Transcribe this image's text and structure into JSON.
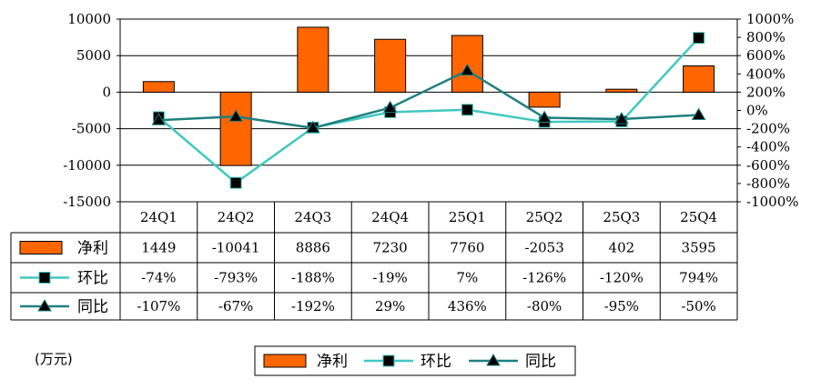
{
  "chart_data": {
    "type": "bar",
    "categories": [
      "24Q1",
      "24Q2",
      "24Q3",
      "24Q4",
      "25Q1",
      "25Q2",
      "25Q3",
      "25Q4"
    ],
    "unit_label": "(万元)",
    "left_axis": {
      "range": [
        -15000,
        10000
      ],
      "ticks": [
        "10000",
        "5000",
        "0",
        "-5000",
        "-10000",
        "-15000"
      ]
    },
    "right_axis": {
      "range": [
        -10,
        10
      ],
      "ticks": [
        "1000%",
        "800%",
        "600%",
        "400%",
        "200%",
        "0%",
        "-200%",
        "-400%",
        "-600%",
        "-800%",
        "-1000%"
      ]
    },
    "grid": true,
    "legend_position": "bottom",
    "series": [
      {
        "name": "净利",
        "type": "bar",
        "axis": "left",
        "color": "#ff6600",
        "values": [
          1449,
          -10041,
          8886,
          7230,
          7760,
          -2053,
          402,
          3595
        ],
        "labels": [
          "1449",
          "-10041",
          "8886",
          "7230",
          "7760",
          "-2053",
          "402",
          "3595"
        ]
      },
      {
        "name": "环比",
        "type": "line",
        "axis": "right",
        "marker": "square",
        "color": "#40c8c0",
        "values": [
          -0.74,
          -7.93,
          -1.88,
          -0.19,
          0.07,
          -1.26,
          -1.2,
          7.94
        ],
        "labels": [
          "-74%",
          "-793%",
          "-188%",
          "-19%",
          "7%",
          "-126%",
          "-120%",
          "794%"
        ]
      },
      {
        "name": "同比",
        "type": "line",
        "axis": "right",
        "marker": "triangle",
        "color": "#1f8080",
        "values": [
          -1.07,
          -0.67,
          -1.92,
          0.29,
          4.36,
          -0.8,
          -0.95,
          -0.5
        ],
        "labels": [
          "-107%",
          "-67%",
          "-192%",
          "29%",
          "436%",
          "-80%",
          "-95%",
          "-50%"
        ]
      }
    ]
  }
}
